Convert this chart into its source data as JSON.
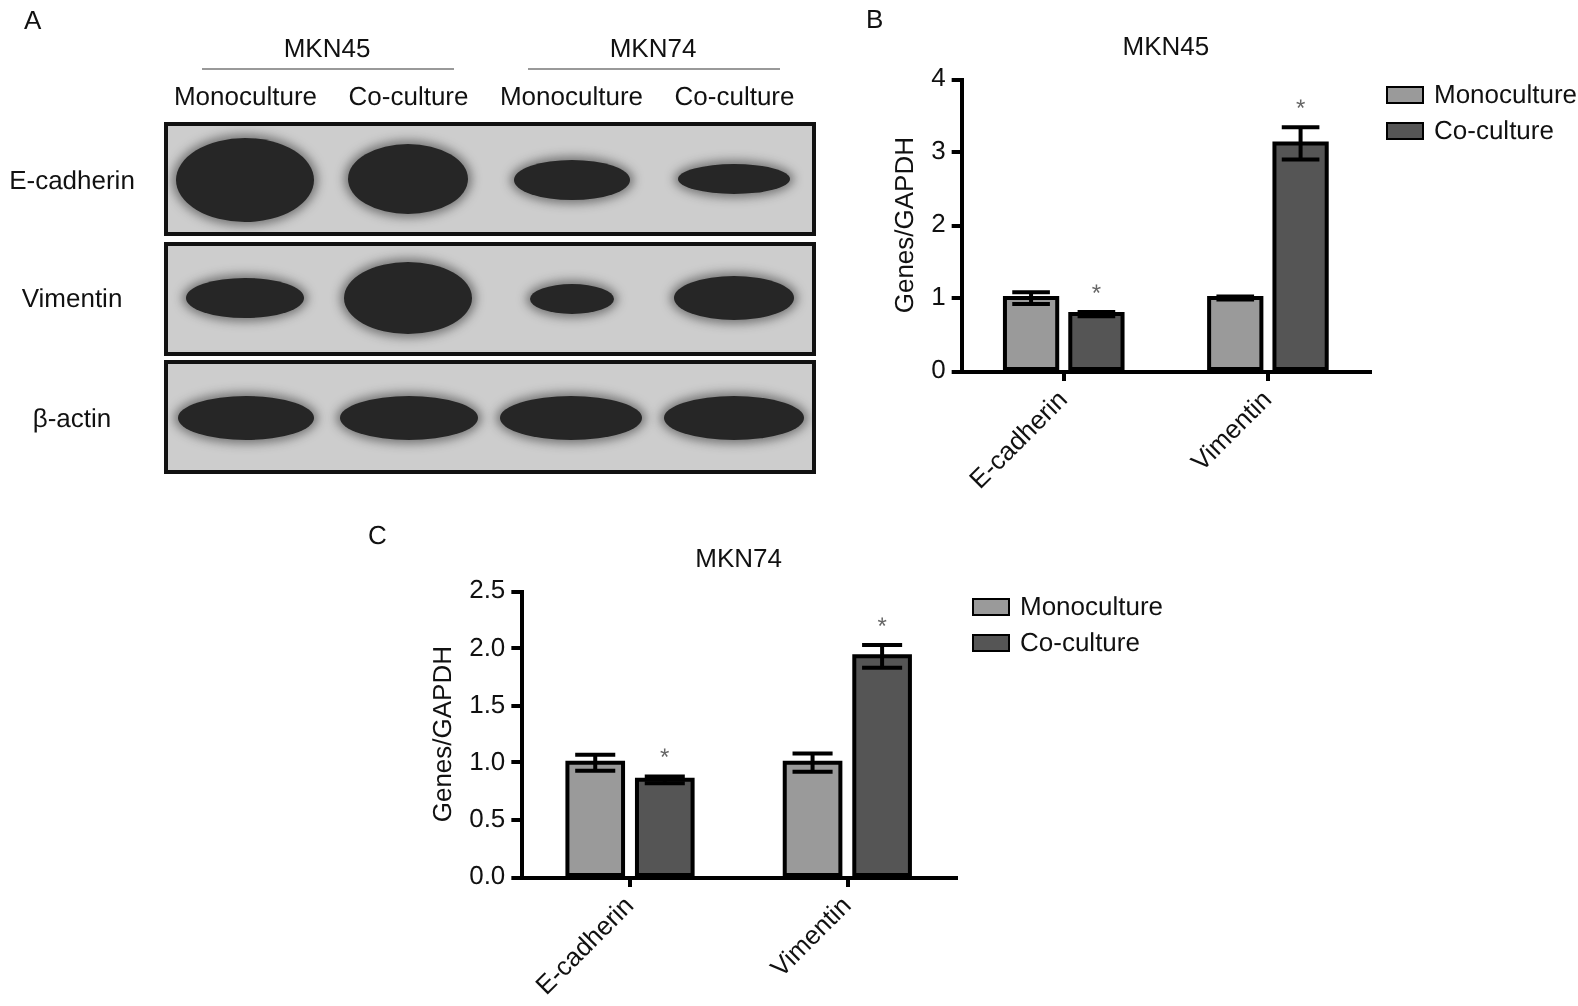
{
  "chart_data": [
    {
      "type": "other",
      "annotations": [
        "A",
        "MKN45",
        "MKN74"
      ],
      "categories": [
        "Monoculture",
        "Co-culture",
        "Monoculture",
        "Co-culture"
      ],
      "y_categories": [
        "E-cadherin",
        "Vimentin",
        "β-actin"
      ]
    },
    {
      "type": "bar",
      "title": "MKN45",
      "ylabel": "Genes/GAPDH",
      "annotations": [
        "B"
      ],
      "categories": [
        "E-cadherin",
        "Vimentin"
      ],
      "series": [
        {
          "name": "Monoculture",
          "color": "#9a9a9a",
          "values": [
            1.0,
            1.0
          ],
          "errors": [
            0.08,
            0.02
          ]
        },
        {
          "name": "Co-culture",
          "color": "#555555",
          "values": [
            0.78,
            3.12
          ],
          "errors": [
            0.03,
            0.22
          ],
          "value_labels": [
            "*",
            "*"
          ]
        }
      ],
      "ylim": [
        0,
        4
      ],
      "yticks": [
        0,
        1,
        2,
        3,
        4
      ],
      "legend": "top right"
    },
    {
      "type": "bar",
      "title": "MKN74",
      "ylabel": "Genes/GAPDH",
      "annotations": [
        "C"
      ],
      "categories": [
        "E-cadherin",
        "Vimentin"
      ],
      "series": [
        {
          "name": "Monoculture",
          "color": "#9a9a9a",
          "values": [
            1.0,
            1.0
          ],
          "errors": [
            0.07,
            0.08
          ]
        },
        {
          "name": "Co-culture",
          "color": "#555555",
          "values": [
            0.85,
            1.93
          ],
          "errors": [
            0.03,
            0.1
          ],
          "value_labels": [
            "*",
            "*"
          ]
        }
      ],
      "ylim": [
        0,
        2.5
      ],
      "yticks": [
        {
          "value": 0,
          "label": "0.0"
        },
        0.5,
        {
          "value": 1,
          "label": "1.0"
        },
        1.5,
        {
          "value": 2,
          "label": "2.0"
        },
        2.5
      ],
      "legend": "top right"
    }
  ]
}
